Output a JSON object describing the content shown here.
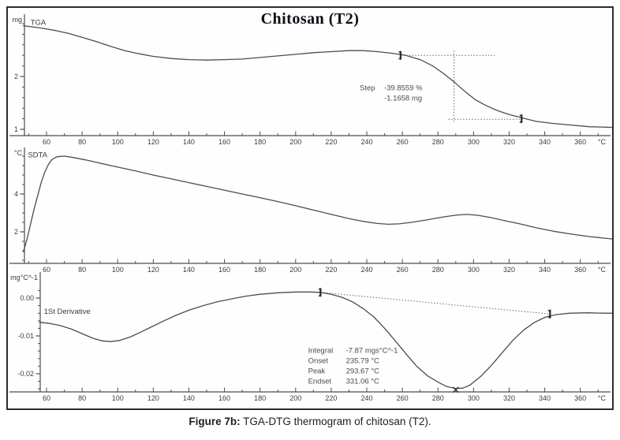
{
  "title": "Chitosan (T2)",
  "caption": {
    "prefix": "Figure 7b:",
    "rest": " TGA-DTG thermogram of chitosan (T2)."
  },
  "colors": {
    "curve": "#4d4d4d",
    "text": "#3d3d3d",
    "dotted": "#6a6a6a",
    "frame": "#2d2d2d",
    "title": "#0c0c16",
    "background": "#ffffff"
  },
  "x_axis": {
    "unit": "°C",
    "tick_labels": [
      60,
      80,
      100,
      120,
      140,
      160,
      180,
      200,
      220,
      240,
      260,
      280,
      300,
      320,
      340,
      360
    ],
    "minor_step": 10,
    "range": [
      47,
      380
    ]
  },
  "chart_data": [
    {
      "type": "line",
      "title": "Chitosan (T2)",
      "name": "TGA",
      "curve_label": "TGA",
      "curve_label_pos": [
        51,
        2.98
      ],
      "ylabel_unit": "mg",
      "xlabel_unit": "°C",
      "xlim": [
        47,
        380
      ],
      "ylim": [
        0.9,
        3.1
      ],
      "y_major_ticks": [
        {
          "v": 2,
          "label": "2"
        },
        {
          "v": 1,
          "label": "1"
        }
      ],
      "y_minor": {
        "step": 0.2,
        "min": 1.0,
        "max": 3.0
      },
      "series": [
        {
          "name": "TGA mass (mg)",
          "points": [
            [
              47,
              2.96
            ],
            [
              52,
              2.94
            ],
            [
              58,
              2.91
            ],
            [
              65,
              2.87
            ],
            [
              72,
              2.82
            ],
            [
              80,
              2.74
            ],
            [
              88,
              2.66
            ],
            [
              96,
              2.57
            ],
            [
              104,
              2.49
            ],
            [
              112,
              2.43
            ],
            [
              120,
              2.38
            ],
            [
              130,
              2.34
            ],
            [
              140,
              2.32
            ],
            [
              150,
              2.31
            ],
            [
              160,
              2.32
            ],
            [
              170,
              2.33
            ],
            [
              180,
              2.36
            ],
            [
              190,
              2.39
            ],
            [
              200,
              2.42
            ],
            [
              210,
              2.45
            ],
            [
              220,
              2.47
            ],
            [
              230,
              2.49
            ],
            [
              238,
              2.49
            ],
            [
              246,
              2.47
            ],
            [
              254,
              2.44
            ],
            [
              262,
              2.4
            ],
            [
              270,
              2.32
            ],
            [
              277,
              2.2
            ],
            [
              283,
              2.06
            ],
            [
              289,
              1.9
            ],
            [
              295,
              1.72
            ],
            [
              301,
              1.56
            ],
            [
              307,
              1.45
            ],
            [
              313,
              1.36
            ],
            [
              320,
              1.28
            ],
            [
              327,
              1.22
            ],
            [
              335,
              1.15
            ],
            [
              345,
              1.11
            ],
            [
              355,
              1.08
            ],
            [
              365,
              1.05
            ],
            [
              375,
              1.04
            ],
            [
              381,
              1.03
            ]
          ]
        }
      ],
      "step_annotation": {
        "label": "Step",
        "value_percent": "-39.8559 %",
        "value_mass": "-1.1658 mg",
        "pos": [
          236,
          1.74
        ]
      },
      "dotted_lines": [
        {
          "type": "h",
          "y": 2.4,
          "x1": 259,
          "x2": 312
        },
        {
          "type": "v",
          "x": 289,
          "y1": 2.49,
          "y2": 1.15
        },
        {
          "type": "h",
          "y": 1.19,
          "x1": 286,
          "x2": 328
        }
      ],
      "flag_markers": [
        [
          259,
          2.4
        ],
        [
          327,
          1.2
        ]
      ]
    },
    {
      "type": "line",
      "name": "SDTA",
      "curve_label": "SDTA",
      "curve_label_pos": [
        49.5,
        5.93
      ],
      "ylabel_unit": "°C",
      "xlabel_unit": "°C",
      "xlim": [
        47,
        380
      ],
      "ylim": [
        0.3,
        6.5
      ],
      "y_major_ticks": [
        {
          "v": 4,
          "label": "4"
        },
        {
          "v": 2,
          "label": "2"
        }
      ],
      "y_minor": {
        "step": 0.5,
        "min": 0.5,
        "max": 6.0
      },
      "series": [
        {
          "name": "SDTA signal (°C)",
          "points": [
            [
              47,
              0.95
            ],
            [
              49,
              1.6
            ],
            [
              51,
              2.4
            ],
            [
              53,
              3.2
            ],
            [
              55,
              3.9
            ],
            [
              57,
              4.6
            ],
            [
              59,
              5.15
            ],
            [
              61,
              5.55
            ],
            [
              63,
              5.82
            ],
            [
              66,
              5.97
            ],
            [
              70,
              6.0
            ],
            [
              75,
              5.93
            ],
            [
              82,
              5.8
            ],
            [
              90,
              5.63
            ],
            [
              100,
              5.42
            ],
            [
              110,
              5.22
            ],
            [
              120,
              5.0
            ],
            [
              130,
              4.8
            ],
            [
              140,
              4.6
            ],
            [
              150,
              4.4
            ],
            [
              160,
              4.2
            ],
            [
              170,
              4.0
            ],
            [
              180,
              3.8
            ],
            [
              190,
              3.6
            ],
            [
              200,
              3.38
            ],
            [
              210,
              3.15
            ],
            [
              220,
              2.92
            ],
            [
              230,
              2.7
            ],
            [
              238,
              2.55
            ],
            [
              246,
              2.44
            ],
            [
              252,
              2.4
            ],
            [
              258,
              2.42
            ],
            [
              265,
              2.5
            ],
            [
              273,
              2.62
            ],
            [
              282,
              2.77
            ],
            [
              290,
              2.88
            ],
            [
              296,
              2.92
            ],
            [
              302,
              2.88
            ],
            [
              310,
              2.75
            ],
            [
              318,
              2.58
            ],
            [
              326,
              2.42
            ],
            [
              335,
              2.22
            ],
            [
              345,
              2.03
            ],
            [
              355,
              1.88
            ],
            [
              365,
              1.75
            ],
            [
              375,
              1.65
            ],
            [
              381,
              1.6
            ]
          ]
        }
      ]
    },
    {
      "type": "line",
      "name": "1St Derivative",
      "curve_label": "1St Derivative",
      "curve_label_pos": [
        58.5,
        -0.0042
      ],
      "ylabel_unit": "mg°C^-1",
      "xlabel_unit": "°C",
      "xlim": [
        47,
        380
      ],
      "ylim": [
        -0.027,
        0.005
      ],
      "y_major_ticks": [
        {
          "v": 0,
          "label": "0.00"
        },
        {
          "v": -0.01,
          "label": "-0.01"
        },
        {
          "v": -0.02,
          "label": "-0.02"
        }
      ],
      "y_minor": {
        "step": 0.002,
        "min": -0.024,
        "max": 0.002
      },
      "series": [
        {
          "name": "1st derivative (mg/°C)",
          "points": [
            [
              56,
              -0.0064
            ],
            [
              62,
              -0.0067
            ],
            [
              68,
              -0.0073
            ],
            [
              74,
              -0.0082
            ],
            [
              80,
              -0.0094
            ],
            [
              86,
              -0.0106
            ],
            [
              91,
              -0.0113
            ],
            [
              96,
              -0.0115
            ],
            [
              101,
              -0.0112
            ],
            [
              107,
              -0.0103
            ],
            [
              113,
              -0.009
            ],
            [
              119,
              -0.0076
            ],
            [
              126,
              -0.006
            ],
            [
              133,
              -0.0045
            ],
            [
              140,
              -0.0032
            ],
            [
              148,
              -0.002
            ],
            [
              156,
              -0.001
            ],
            [
              164,
              -0.0002
            ],
            [
              172,
              0.0005
            ],
            [
              180,
              0.001
            ],
            [
              190,
              0.0014
            ],
            [
              200,
              0.0016
            ],
            [
              208,
              0.0016
            ],
            [
              214,
              0.0015
            ],
            [
              220,
              0.001
            ],
            [
              226,
              0.0002
            ],
            [
              232,
              -0.001
            ],
            [
              238,
              -0.0028
            ],
            [
              244,
              -0.005
            ],
            [
              250,
              -0.008
            ],
            [
              256,
              -0.0113
            ],
            [
              262,
              -0.0147
            ],
            [
              268,
              -0.018
            ],
            [
              274,
              -0.0205
            ],
            [
              280,
              -0.0222
            ],
            [
              285,
              -0.0234
            ],
            [
              290,
              -0.0239
            ],
            [
              294,
              -0.0238
            ],
            [
              298,
              -0.023
            ],
            [
              304,
              -0.0207
            ],
            [
              310,
              -0.0178
            ],
            [
              316,
              -0.0145
            ],
            [
              322,
              -0.0112
            ],
            [
              328,
              -0.0085
            ],
            [
              334,
              -0.0065
            ],
            [
              340,
              -0.0051
            ],
            [
              346,
              -0.0044
            ],
            [
              354,
              -0.004
            ],
            [
              364,
              -0.0039
            ],
            [
              374,
              -0.004
            ],
            [
              381,
              -0.004
            ]
          ]
        }
      ],
      "results_annotation": {
        "rows": [
          [
            "Integral",
            "-7.87 mgs°C^-1"
          ],
          [
            "Onset",
            "235.79 °C"
          ],
          [
            "Peak",
            "293.67 °C"
          ],
          [
            "Endset",
            "331.06 °C"
          ]
        ],
        "pos": [
          207,
          -0.0145
        ]
      },
      "dotted_lines": [
        {
          "type": "seg",
          "x1": 214,
          "y1": 0.0015,
          "x2": 343,
          "y2": -0.0042
        }
      ],
      "flag_markers": [
        [
          214,
          0.0015
        ],
        [
          343,
          -0.0042
        ]
      ],
      "cross_marker": [
        290,
        -0.0242
      ]
    }
  ]
}
